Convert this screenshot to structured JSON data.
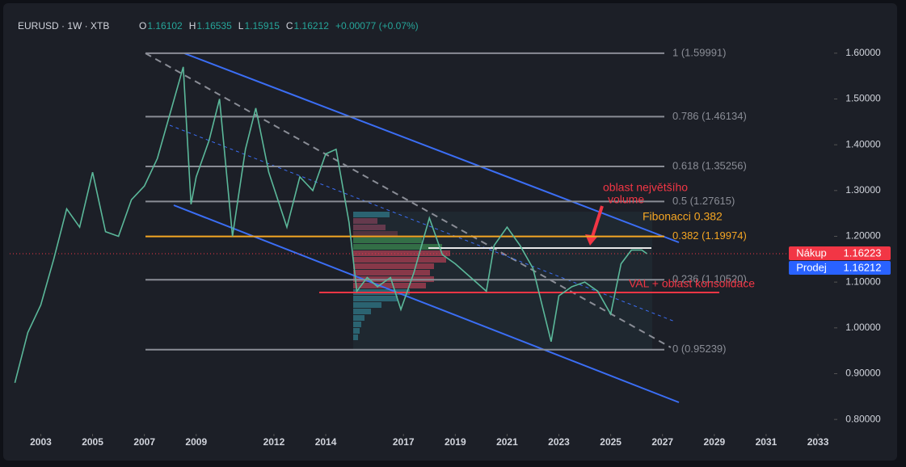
{
  "chart_data": {
    "type": "line",
    "header": {
      "symbol": "EURUSD · 1W · XTB",
      "ohlc": [
        {
          "key": "O",
          "value": 1.16102
        },
        {
          "key": "H",
          "value": 1.16535
        },
        {
          "key": "L",
          "value": 1.15915
        },
        {
          "key": "C",
          "value": 1.16212
        }
      ],
      "change": "+0.00077 (+0.07%)"
    },
    "color": "#5bb89a",
    "x": [
      2002.0,
      2002.5,
      2003.0,
      2003.5,
      2004.0,
      2004.5,
      2005.0,
      2005.5,
      2006.0,
      2006.5,
      2007.0,
      2007.5,
      2008.0,
      2008.5,
      2008.8,
      2009.0,
      2009.5,
      2009.9,
      2010.4,
      2010.9,
      2011.3,
      2011.8,
      2012.5,
      2013.0,
      2013.5,
      2014.0,
      2014.4,
      2014.9,
      2015.2,
      2015.6,
      2016.0,
      2016.5,
      2016.9,
      2017.4,
      2018.0,
      2018.5,
      2019.0,
      2019.8,
      2020.2,
      2020.5,
      2021.0,
      2021.5,
      2022.0,
      2022.7,
      2023.0,
      2023.5,
      2024.0,
      2024.5,
      2025.0,
      2025.4,
      2025.8,
      2026.2,
      2026.4
    ],
    "values": [
      0.88,
      0.99,
      1.05,
      1.15,
      1.26,
      1.22,
      1.34,
      1.21,
      1.2,
      1.28,
      1.31,
      1.37,
      1.47,
      1.57,
      1.27,
      1.33,
      1.41,
      1.5,
      1.2,
      1.39,
      1.48,
      1.34,
      1.22,
      1.33,
      1.3,
      1.38,
      1.39,
      1.23,
      1.08,
      1.11,
      1.09,
      1.11,
      1.04,
      1.12,
      1.24,
      1.16,
      1.14,
      1.1,
      1.08,
      1.18,
      1.22,
      1.18,
      1.13,
      0.97,
      1.07,
      1.09,
      1.1,
      1.08,
      1.03,
      1.14,
      1.17,
      1.17,
      1.162
    ],
    "xlim": [
      2001.8,
      2033.56
    ],
    "xticks": [
      2003,
      2005,
      2007,
      2009,
      2012,
      2014,
      2017,
      2019,
      2021,
      2023,
      2025,
      2027,
      2029,
      2031,
      2033
    ],
    "ylim": [
      0.772,
      1.695
    ],
    "yticks": [
      {
        "value": 0.8,
        "label": "0.80000"
      },
      {
        "value": 0.9,
        "label": "0.90000"
      },
      {
        "value": 1.0,
        "label": "1.00000"
      },
      {
        "value": 1.1,
        "label": "1.10000"
      },
      {
        "value": 1.2,
        "label": "1.20000"
      },
      {
        "value": 1.3,
        "label": "1.30000"
      },
      {
        "value": 1.4,
        "label": "1.40000"
      },
      {
        "value": 1.5,
        "label": "1.50000"
      },
      {
        "value": 1.6,
        "label": "1.60000"
      }
    ],
    "fib_levels": [
      {
        "price": 1.59991,
        "label": "1 (1.59991)",
        "color": "#8a8d96"
      },
      {
        "price": 1.46134,
        "label": "0.786 (1.46134)",
        "color": "#8a8d96"
      },
      {
        "price": 1.35256,
        "label": "0.618 (1.35256)",
        "color": "#8a8d96"
      },
      {
        "price": 1.27615,
        "label": "0.5 (1.27615)",
        "color": "#8a8d96"
      },
      {
        "price": 1.19974,
        "label": "0.382 (1.19974)",
        "color": "#f5a623"
      },
      {
        "price": 1.1052,
        "label": "0.236 (1.10520)",
        "color": "#8a8d96"
      },
      {
        "price": 0.95239,
        "label": "0 (0.95239)",
        "color": "#8a8d96"
      }
    ],
    "annotations": {
      "volume_note": [
        "oblast největšího",
        "volume"
      ],
      "fib_note": "Fibonacci 0.382",
      "val_note": "VAL + oblast konsolidace"
    },
    "quotes": [
      {
        "label": "Nákup",
        "value": 1.16223,
        "color": "#f23645"
      },
      {
        "label": "Prodej",
        "value": 1.16212,
        "color": "#2962ff"
      }
    ]
  }
}
